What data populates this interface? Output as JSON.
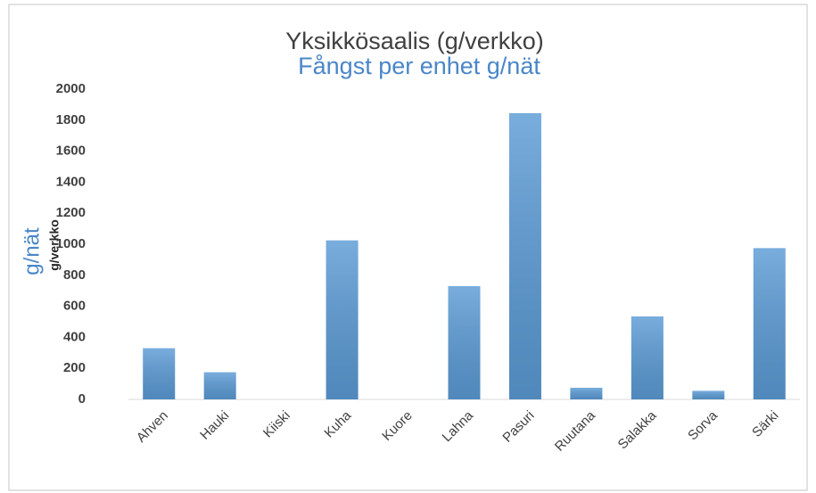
{
  "chart_data": {
    "type": "bar",
    "title": "Yksikkösaalis (g/verkko)",
    "subtitle": "Fångst per enhet g/nät",
    "y_label": "g/verkko",
    "y_label_2": "g/nät",
    "categories": [
      "Ahven",
      "Hauki",
      "Kiiski",
      "Kuha",
      "Kuore",
      "Lahna",
      "Pasuri",
      "Ruutana",
      "Salakka",
      "Sorva",
      "Särki"
    ],
    "values": [
      330,
      175,
      0,
      1025,
      0,
      730,
      1845,
      75,
      535,
      55,
      975
    ],
    "color": "#5b9bd5",
    "ylim": [
      0,
      2000
    ],
    "yticks": [
      0,
      200,
      400,
      600,
      800,
      1000,
      1200,
      1400,
      1600,
      1800,
      2000
    ],
    "grid": false
  }
}
